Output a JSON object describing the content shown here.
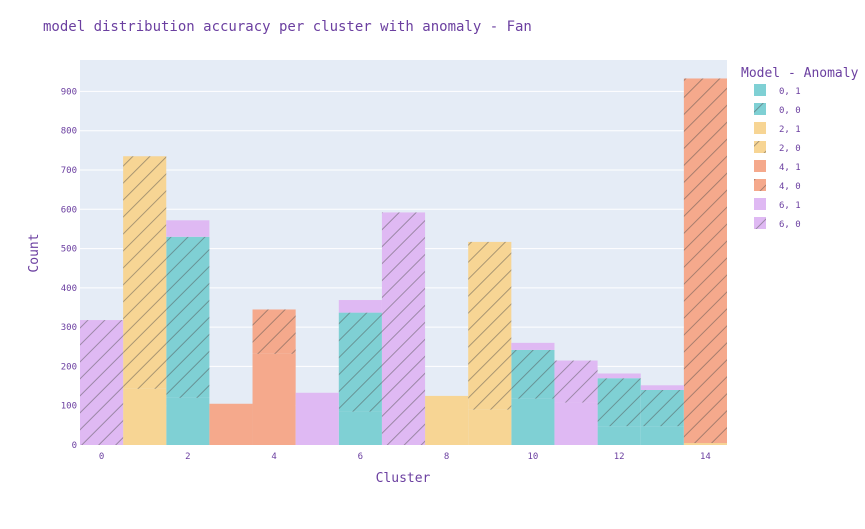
{
  "chart_data": {
    "type": "bar",
    "barmode": "stacked",
    "title": "model distribution accuracy per cluster with anomaly - Fan",
    "xlabel": "Cluster",
    "ylabel": "Count",
    "xlim": [
      -0.5,
      14.5
    ],
    "ylim": [
      0,
      980
    ],
    "x_ticks": [
      0,
      2,
      4,
      6,
      8,
      10,
      12,
      14
    ],
    "y_ticks": [
      0,
      100,
      200,
      300,
      400,
      500,
      600,
      700,
      800,
      900
    ],
    "grid": true,
    "legend_title": "Model - Anomaly",
    "legend_position": "right",
    "background_color": "#E5ECF6",
    "series": [
      {
        "name": "0, 1",
        "color": "#7FD0D4",
        "pattern": "solid",
        "points": [
          [
            2,
            120
          ],
          [
            6,
            85
          ],
          [
            10,
            118
          ],
          [
            12,
            48
          ],
          [
            13,
            48
          ]
        ]
      },
      {
        "name": "0, 0",
        "color": "#7FD0D4",
        "pattern": "hatch",
        "points": [
          [
            2,
            410
          ],
          [
            6,
            252
          ],
          [
            10,
            124
          ],
          [
            12,
            122
          ],
          [
            13,
            92
          ]
        ]
      },
      {
        "name": "2, 1",
        "color": "#F7D594",
        "pattern": "solid",
        "points": [
          [
            1,
            143
          ],
          [
            8,
            125
          ],
          [
            9,
            90
          ],
          [
            14,
            5
          ]
        ]
      },
      {
        "name": "2, 0",
        "color": "#F7D594",
        "pattern": "hatch",
        "points": [
          [
            1,
            592
          ],
          [
            9,
            427
          ]
        ]
      },
      {
        "name": "4, 1",
        "color": "#F5A98C",
        "pattern": "solid",
        "points": [
          [
            3,
            105
          ],
          [
            4,
            232
          ]
        ]
      },
      {
        "name": "4, 0",
        "color": "#F5A98C",
        "pattern": "hatch",
        "points": [
          [
            4,
            113
          ],
          [
            14,
            928
          ]
        ]
      },
      {
        "name": "6, 1",
        "color": "#DFB9F3",
        "pattern": "solid",
        "points": [
          [
            2,
            42
          ],
          [
            5,
            133
          ],
          [
            6,
            32
          ],
          [
            10,
            18
          ],
          [
            11,
            108
          ],
          [
            12,
            12
          ],
          [
            13,
            12
          ]
        ]
      },
      {
        "name": "6, 0",
        "color": "#DFB9F3",
        "pattern": "hatch",
        "points": [
          [
            0,
            318
          ],
          [
            7,
            592
          ],
          [
            11,
            107
          ]
        ]
      }
    ]
  }
}
